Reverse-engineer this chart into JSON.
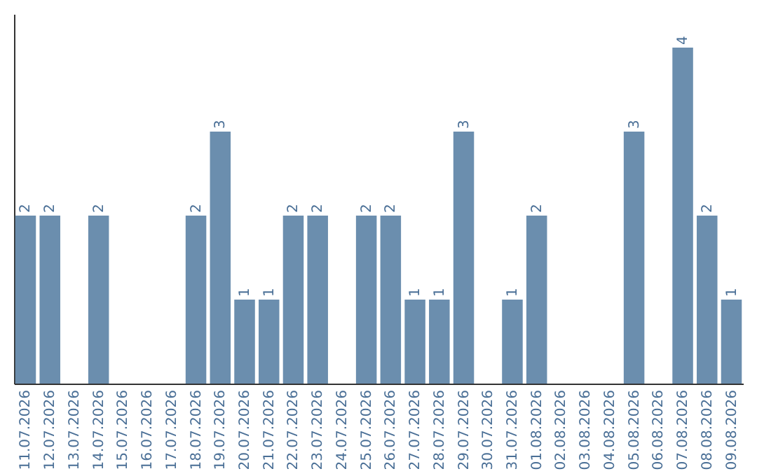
{
  "chart_data": {
    "type": "bar",
    "categories": [
      "11.07.2026",
      "12.07.2026",
      "13.07.2026",
      "14.07.2026",
      "15.07.2026",
      "16.07.2026",
      "17.07.2026",
      "18.07.2026",
      "19.07.2026",
      "20.07.2026",
      "21.07.2026",
      "22.07.2026",
      "23.07.2026",
      "24.07.2026",
      "25.07.2026",
      "26.07.2026",
      "27.07.2026",
      "28.07.2026",
      "29.07.2026",
      "30.07.2026",
      "31.07.2026",
      "01.08.2026",
      "02.08.2026",
      "03.08.2026",
      "04.08.2026",
      "05.08.2026",
      "06.08.2026",
      "07.08.2026",
      "08.08.2026",
      "09.08.2026"
    ],
    "values": [
      2,
      2,
      0,
      2,
      0,
      0,
      0,
      2,
      3,
      1,
      1,
      2,
      2,
      0,
      2,
      2,
      1,
      1,
      3,
      0,
      1,
      2,
      0,
      0,
      0,
      3,
      0,
      4,
      2,
      1
    ],
    "value_labels": [
      "2",
      "2",
      null,
      "2",
      null,
      null,
      null,
      "2",
      "3",
      "1",
      "1",
      "2",
      "2",
      null,
      "2",
      "2",
      "1",
      "1",
      "3",
      null,
      "1",
      "2",
      null,
      null,
      null,
      "3",
      null,
      "4",
      "2",
      "1"
    ],
    "color": "#6b8eae",
    "tick_labels": "x"
  }
}
